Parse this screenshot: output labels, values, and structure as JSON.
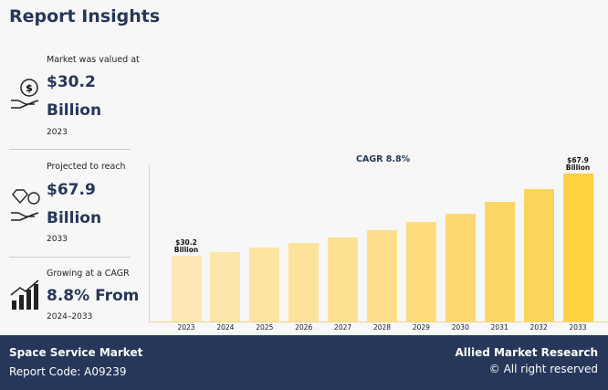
{
  "header": {
    "title": "Report Insights"
  },
  "insights": [
    {
      "caption": "Market was valued at",
      "value": "$30.2",
      "unit": "Billion",
      "period": "2023"
    },
    {
      "caption": "Projected to reach",
      "value": "$67.9",
      "unit": "Billion",
      "period": "2033"
    },
    {
      "caption": "Growing at a CAGR",
      "value": "8.8% From",
      "period": "2024–2033"
    }
  ],
  "chart_data": {
    "type": "bar",
    "annotation": "CAGR 8.8%",
    "categories": [
      "2023",
      "2024",
      "2025",
      "2026",
      "2027",
      "2028",
      "2029",
      "2030",
      "2031",
      "2032",
      "2033"
    ],
    "values": [
      30.2,
      31.9,
      33.9,
      36.0,
      38.6,
      41.9,
      45.7,
      49.5,
      54.9,
      60.8,
      67.9
    ],
    "value_labels": [
      "$30.2 Billion",
      null,
      null,
      null,
      null,
      null,
      null,
      null,
      null,
      null,
      "$67.9 Billion"
    ],
    "colors": [
      "#fde8b3",
      "#fde6a9",
      "#fde4a1",
      "#fde39a",
      "#fde193",
      "#fddf89",
      "#fddc7e",
      "#fdd972",
      "#fdd766",
      "#fdd45a",
      "#fdd13f"
    ]
  },
  "footer": {
    "market": "Space Service Market",
    "code": "Report Code: A09239",
    "brand": "Allied Market Research",
    "rights": "© All right reserved"
  }
}
